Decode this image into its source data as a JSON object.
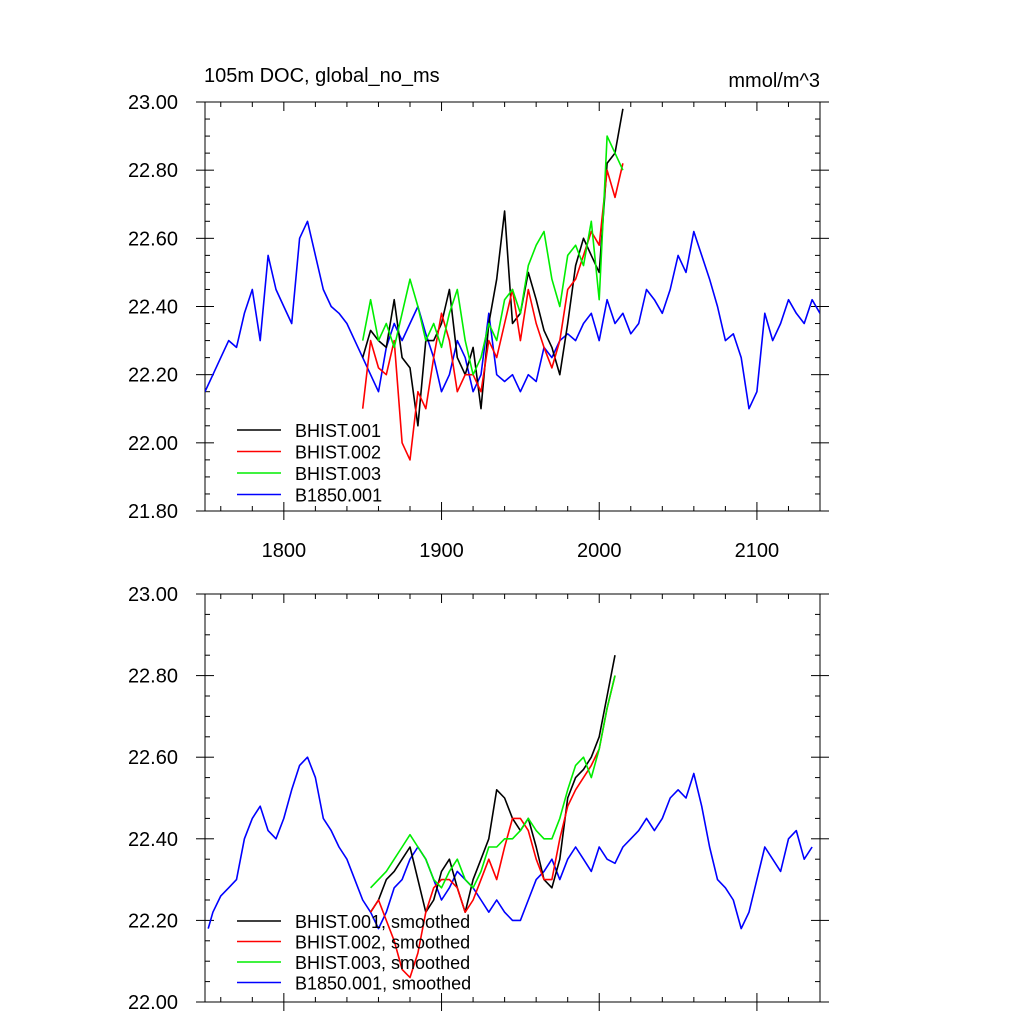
{
  "chart_data": [
    {
      "type": "line",
      "title": "105m DOC, global_no_ms",
      "units": "mmol/m^3",
      "xlim": [
        1750,
        2140
      ],
      "ylim": [
        21.8,
        23.0
      ],
      "x_ticks": [
        1800,
        1900,
        2000,
        2100
      ],
      "y_ticks": [
        21.8,
        22.0,
        22.2,
        22.4,
        22.6,
        22.8,
        23.0
      ],
      "x_tick_labels": [
        "1800",
        "1900",
        "2000",
        "2100"
      ],
      "y_tick_labels": [
        "21.80",
        "22.00",
        "22.20",
        "22.40",
        "22.60",
        "22.80",
        "23.00"
      ],
      "legend_position": "bottom-left",
      "series": [
        {
          "name": "BHIST.001",
          "color": "#000000",
          "x": [
            1850,
            1855,
            1860,
            1865,
            1870,
            1875,
            1880,
            1885,
            1890,
            1895,
            1900,
            1905,
            1910,
            1915,
            1920,
            1925,
            1930,
            1935,
            1940,
            1945,
            1950,
            1955,
            1960,
            1965,
            1970,
            1975,
            1980,
            1985,
            1990,
            1995,
            2000,
            2005,
            2010,
            2015
          ],
          "y": [
            22.25,
            22.33,
            22.3,
            22.28,
            22.42,
            22.25,
            22.22,
            22.05,
            22.3,
            22.3,
            22.35,
            22.45,
            22.25,
            22.2,
            22.28,
            22.1,
            22.35,
            22.48,
            22.68,
            22.35,
            22.38,
            22.5,
            22.42,
            22.33,
            22.28,
            22.2,
            22.35,
            22.52,
            22.6,
            22.55,
            22.5,
            22.82,
            22.85,
            22.98
          ]
        },
        {
          "name": "BHIST.002",
          "color": "#ff0000",
          "x": [
            1850,
            1855,
            1860,
            1865,
            1870,
            1875,
            1880,
            1885,
            1890,
            1895,
            1900,
            1905,
            1910,
            1915,
            1920,
            1925,
            1930,
            1935,
            1940,
            1945,
            1950,
            1955,
            1960,
            1965,
            1970,
            1975,
            1980,
            1985,
            1990,
            1995,
            2000,
            2005,
            2010,
            2015
          ],
          "y": [
            22.1,
            22.3,
            22.22,
            22.2,
            22.3,
            22.0,
            21.95,
            22.15,
            22.1,
            22.25,
            22.38,
            22.3,
            22.15,
            22.2,
            22.2,
            22.15,
            22.3,
            22.25,
            22.35,
            22.45,
            22.3,
            22.45,
            22.35,
            22.28,
            22.22,
            22.3,
            22.45,
            22.48,
            22.55,
            22.62,
            22.58,
            22.8,
            22.72,
            22.82
          ]
        },
        {
          "name": "BHIST.003",
          "color": "#00ee00",
          "x": [
            1850,
            1855,
            1860,
            1865,
            1870,
            1875,
            1880,
            1885,
            1890,
            1895,
            1900,
            1905,
            1910,
            1915,
            1920,
            1925,
            1930,
            1935,
            1940,
            1945,
            1950,
            1955,
            1960,
            1965,
            1970,
            1975,
            1980,
            1985,
            1990,
            1995,
            2000,
            2005,
            2010,
            2015
          ],
          "y": [
            22.3,
            22.42,
            22.3,
            22.35,
            22.28,
            22.38,
            22.48,
            22.4,
            22.3,
            22.35,
            22.28,
            22.38,
            22.45,
            22.3,
            22.2,
            22.25,
            22.35,
            22.3,
            22.42,
            22.45,
            22.38,
            22.52,
            22.58,
            22.62,
            22.48,
            22.4,
            22.55,
            22.58,
            22.52,
            22.65,
            22.42,
            22.9,
            22.85,
            22.8
          ]
        },
        {
          "name": "B1850.001",
          "color": "#0000ff",
          "x": [
            1750,
            1755,
            1760,
            1765,
            1770,
            1775,
            1780,
            1785,
            1790,
            1795,
            1800,
            1805,
            1810,
            1815,
            1820,
            1825,
            1830,
            1835,
            1840,
            1845,
            1850,
            1855,
            1860,
            1865,
            1870,
            1875,
            1880,
            1885,
            1890,
            1895,
            1900,
            1905,
            1910,
            1915,
            1920,
            1925,
            1930,
            1935,
            1940,
            1945,
            1950,
            1955,
            1960,
            1965,
            1970,
            1975,
            1980,
            1985,
            1990,
            1995,
            2000,
            2005,
            2010,
            2015,
            2020,
            2025,
            2030,
            2035,
            2040,
            2045,
            2050,
            2055,
            2060,
            2065,
            2070,
            2075,
            2080,
            2085,
            2090,
            2095,
            2100,
            2105,
            2110,
            2115,
            2120,
            2125,
            2130,
            2135,
            2140
          ],
          "y": [
            22.15,
            22.2,
            22.25,
            22.3,
            22.28,
            22.38,
            22.45,
            22.3,
            22.55,
            22.45,
            22.4,
            22.35,
            22.6,
            22.65,
            22.55,
            22.45,
            22.4,
            22.38,
            22.35,
            22.3,
            22.25,
            22.2,
            22.15,
            22.28,
            22.35,
            22.3,
            22.35,
            22.4,
            22.32,
            22.25,
            22.15,
            22.2,
            22.3,
            22.25,
            22.15,
            22.2,
            22.38,
            22.2,
            22.18,
            22.2,
            22.15,
            22.2,
            22.18,
            22.28,
            22.25,
            22.3,
            22.32,
            22.3,
            22.35,
            22.38,
            22.3,
            22.42,
            22.35,
            22.38,
            22.32,
            22.35,
            22.45,
            22.42,
            22.38,
            22.45,
            22.55,
            22.5,
            22.62,
            22.55,
            22.48,
            22.4,
            22.3,
            22.32,
            22.25,
            22.1,
            22.15,
            22.38,
            22.3,
            22.35,
            22.42,
            22.38,
            22.35,
            22.42,
            22.38
          ]
        }
      ]
    },
    {
      "type": "line",
      "xlim": [
        1750,
        2140
      ],
      "ylim": [
        22.0,
        23.0
      ],
      "x_ticks": [
        1800,
        1900,
        2000,
        2100
      ],
      "y_ticks": [
        22.0,
        22.2,
        22.4,
        22.6,
        22.8,
        23.0
      ],
      "y_tick_labels": [
        "22.00",
        "22.20",
        "22.40",
        "22.60",
        "22.80",
        "23.00"
      ],
      "legend_position": "bottom-left",
      "series": [
        {
          "name": "BHIST.001, smoothed",
          "color": "#000000",
          "x": [
            1855,
            1860,
            1865,
            1870,
            1875,
            1880,
            1885,
            1890,
            1895,
            1900,
            1905,
            1910,
            1915,
            1920,
            1925,
            1930,
            1935,
            1940,
            1945,
            1950,
            1955,
            1960,
            1965,
            1970,
            1975,
            1980,
            1985,
            1990,
            1995,
            2000,
            2005,
            2010
          ],
          "y": [
            22.22,
            22.25,
            22.3,
            22.32,
            22.35,
            22.38,
            22.3,
            22.22,
            22.25,
            22.32,
            22.35,
            22.28,
            22.22,
            22.3,
            22.35,
            22.4,
            22.52,
            22.5,
            22.45,
            22.42,
            22.45,
            22.38,
            22.3,
            22.28,
            22.35,
            22.5,
            22.55,
            22.57,
            22.6,
            22.65,
            22.75,
            22.85
          ]
        },
        {
          "name": "BHIST.002, smoothed",
          "color": "#ff0000",
          "x": [
            1855,
            1860,
            1865,
            1870,
            1875,
            1880,
            1885,
            1890,
            1895,
            1900,
            1905,
            1910,
            1915,
            1920,
            1925,
            1930,
            1935,
            1940,
            1945,
            1950,
            1955,
            1960,
            1965,
            1970,
            1975,
            1980,
            1985,
            1990,
            1995,
            2000,
            2005,
            2010
          ],
          "y": [
            22.22,
            22.25,
            22.2,
            22.15,
            22.08,
            22.06,
            22.12,
            22.22,
            22.28,
            22.3,
            22.3,
            22.28,
            22.22,
            22.25,
            22.3,
            22.35,
            22.3,
            22.38,
            22.45,
            22.45,
            22.42,
            22.35,
            22.3,
            22.3,
            22.4,
            22.48,
            22.52,
            22.55,
            22.58,
            22.62,
            22.72,
            22.8
          ]
        },
        {
          "name": "BHIST.003, smoothed",
          "color": "#00ee00",
          "x": [
            1855,
            1860,
            1865,
            1870,
            1875,
            1880,
            1885,
            1890,
            1895,
            1900,
            1905,
            1910,
            1915,
            1920,
            1925,
            1930,
            1935,
            1940,
            1945,
            1950,
            1955,
            1960,
            1965,
            1970,
            1975,
            1980,
            1985,
            1990,
            1995,
            2000,
            2005,
            2010
          ],
          "y": [
            22.28,
            22.3,
            22.32,
            22.35,
            22.38,
            22.41,
            22.38,
            22.35,
            22.3,
            22.28,
            22.32,
            22.35,
            22.3,
            22.28,
            22.32,
            22.38,
            22.38,
            22.4,
            22.4,
            22.42,
            22.45,
            22.42,
            22.4,
            22.4,
            22.45,
            22.52,
            22.58,
            22.6,
            22.55,
            22.62,
            22.72,
            22.8
          ]
        },
        {
          "name": "B1850.001, smoothed",
          "color": "#0000ff",
          "x": [
            1752,
            1755,
            1760,
            1765,
            1770,
            1775,
            1780,
            1785,
            1790,
            1795,
            1800,
            1805,
            1810,
            1815,
            1820,
            1825,
            1830,
            1835,
            1840,
            1845,
            1850,
            1855,
            1860,
            1865,
            1870,
            1875,
            1880,
            1885,
            1890,
            1895,
            1900,
            1905,
            1910,
            1915,
            1920,
            1925,
            1930,
            1935,
            1940,
            1945,
            1950,
            1955,
            1960,
            1965,
            1970,
            1975,
            1980,
            1985,
            1990,
            1995,
            2000,
            2005,
            2010,
            2015,
            2020,
            2025,
            2030,
            2035,
            2040,
            2045,
            2050,
            2055,
            2060,
            2065,
            2070,
            2075,
            2080,
            2085,
            2090,
            2095,
            2100,
            2105,
            2110,
            2115,
            2120,
            2125,
            2130,
            2135
          ],
          "y": [
            22.18,
            22.22,
            22.26,
            22.28,
            22.3,
            22.4,
            22.45,
            22.48,
            22.42,
            22.4,
            22.45,
            22.52,
            22.58,
            22.6,
            22.55,
            22.45,
            22.42,
            22.38,
            22.35,
            22.3,
            22.25,
            22.22,
            22.18,
            22.22,
            22.28,
            22.3,
            22.35,
            22.38,
            22.35,
            22.3,
            22.25,
            22.28,
            22.32,
            22.3,
            22.28,
            22.25,
            22.22,
            22.25,
            22.22,
            22.2,
            22.2,
            22.25,
            22.3,
            22.32,
            22.35,
            22.3,
            22.35,
            22.38,
            22.35,
            22.32,
            22.38,
            22.35,
            22.34,
            22.38,
            22.4,
            22.42,
            22.45,
            22.42,
            22.45,
            22.5,
            22.52,
            22.5,
            22.56,
            22.48,
            22.38,
            22.3,
            22.28,
            22.25,
            22.18,
            22.22,
            22.3,
            22.38,
            22.35,
            22.32,
            22.4,
            22.42,
            22.35,
            22.38
          ]
        }
      ]
    }
  ]
}
